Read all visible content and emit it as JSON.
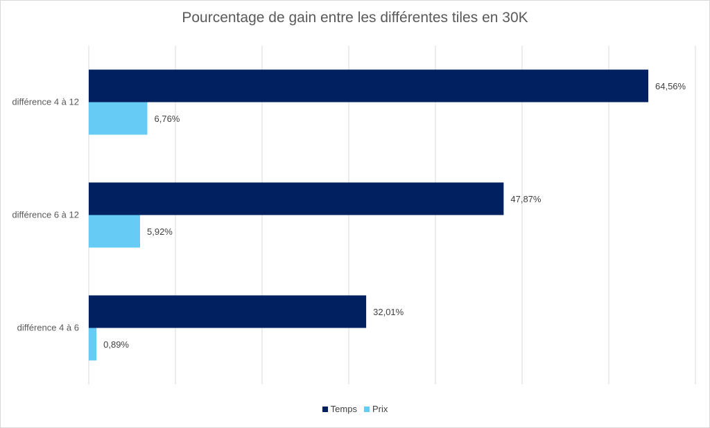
{
  "chart_data": {
    "type": "bar",
    "orientation": "horizontal",
    "title": "Pourcentage de gain entre les différentes tiles en 30K",
    "categories": [
      "différence 4 à 12",
      "différence 6 à 12",
      "différence 4 à 6"
    ],
    "series": [
      {
        "name": "Temps",
        "color": "#002060",
        "values": [
          64.56,
          47.87,
          32.01
        ],
        "labels": [
          "64,56%",
          "47,87%",
          "32,01%"
        ]
      },
      {
        "name": "Prix",
        "color": "#66CCF5",
        "values": [
          6.76,
          5.92,
          0.89
        ],
        "labels": [
          "6,76%",
          "5,92%",
          "0,89%"
        ]
      }
    ],
    "xlim": [
      0,
      70
    ],
    "grid": true,
    "legend": "bottom"
  }
}
